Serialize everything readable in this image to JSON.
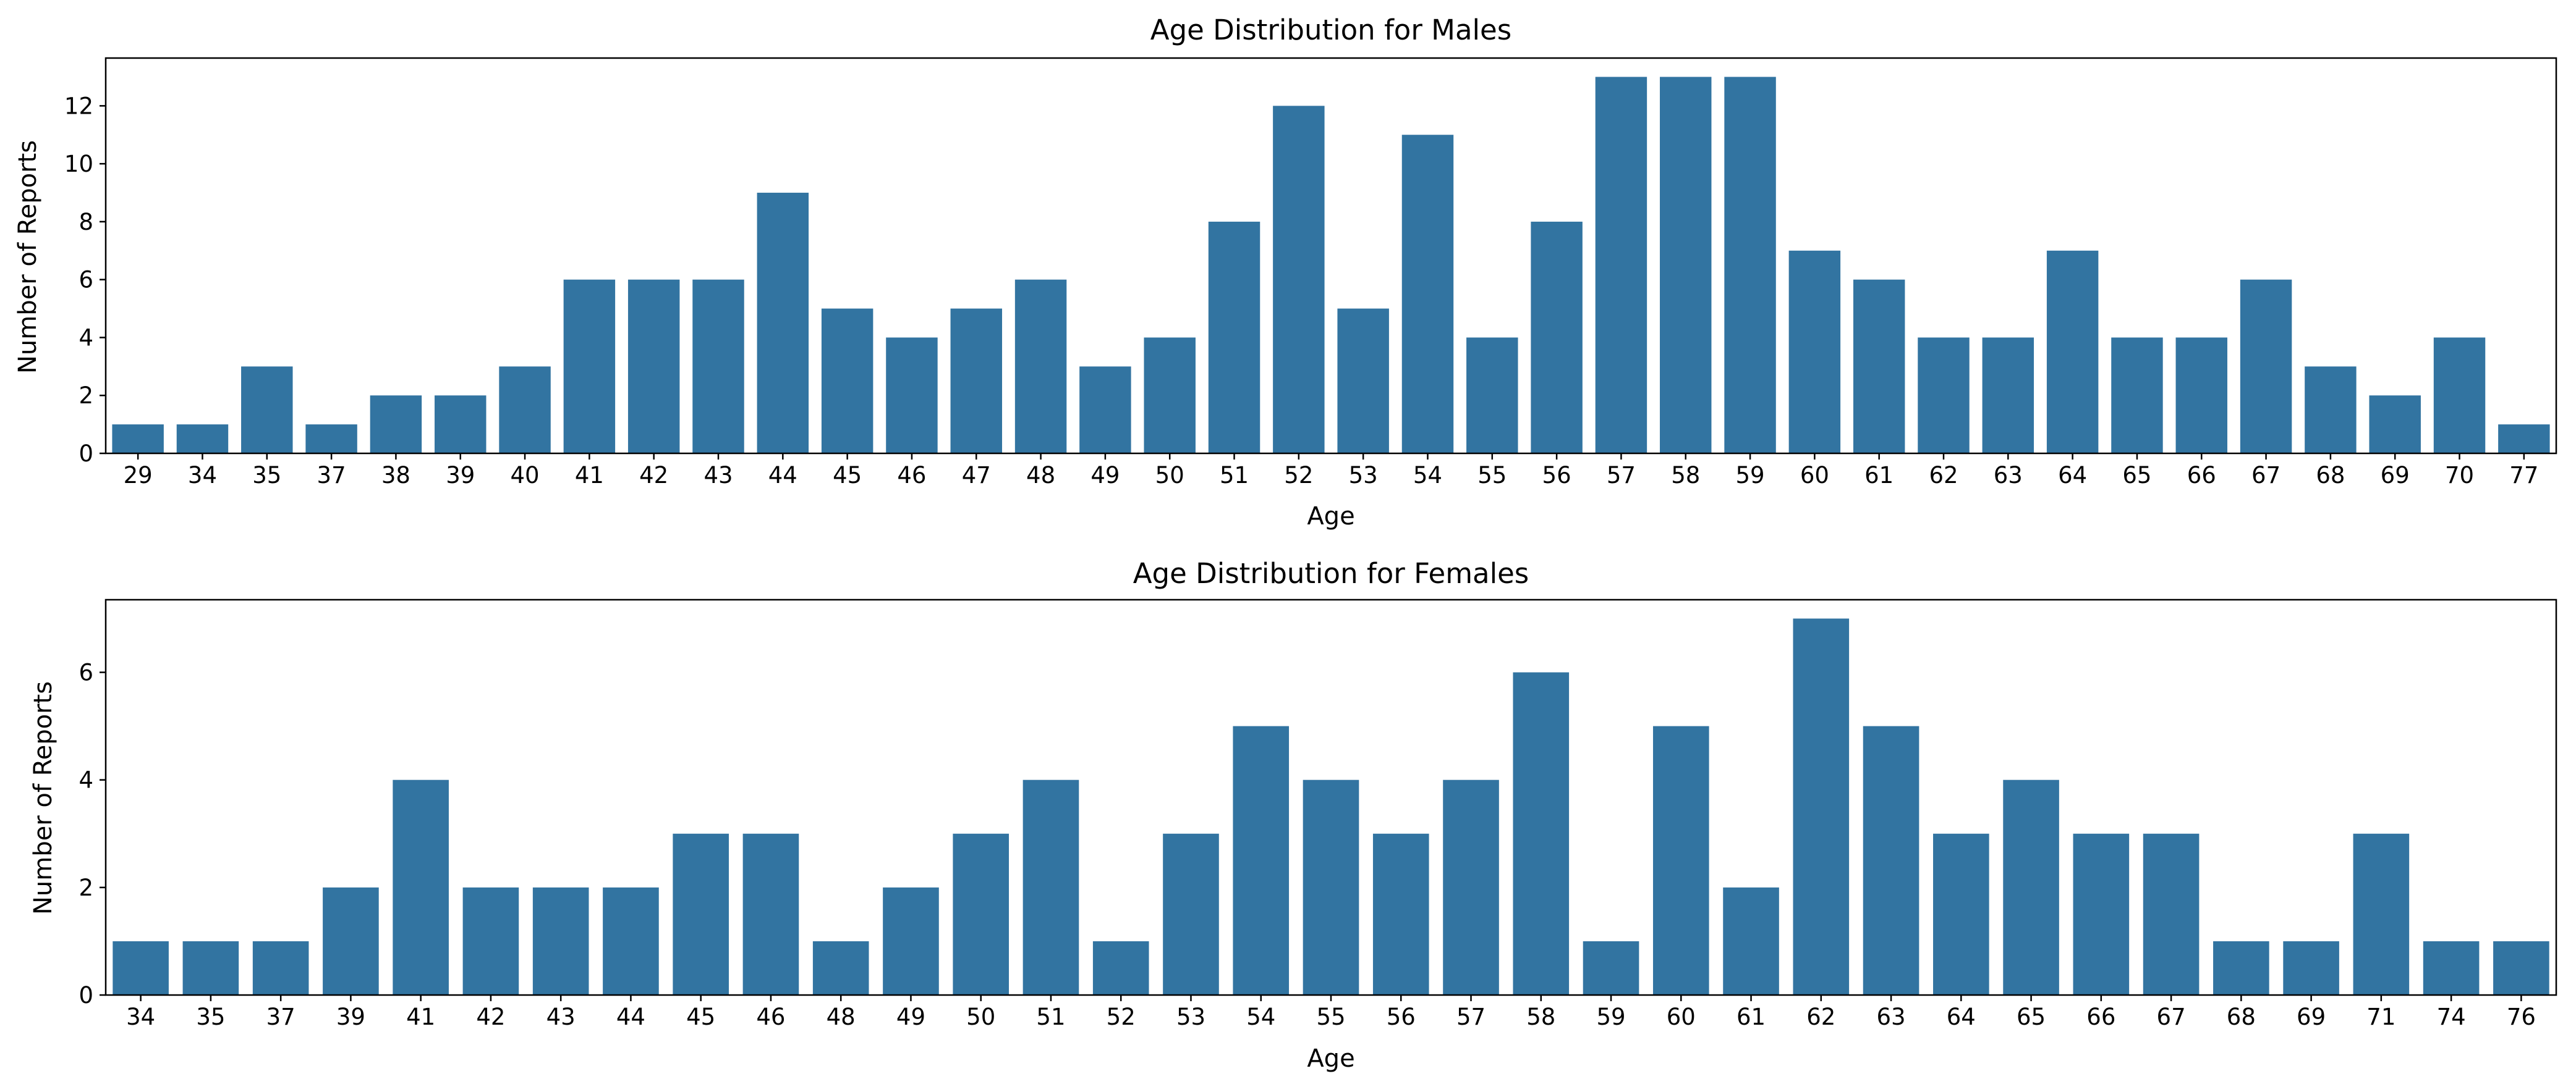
{
  "chart_data": [
    {
      "type": "bar",
      "title": "Age Distribution for Males",
      "xlabel": "Age",
      "ylabel": "Number of Reports",
      "categories": [
        "29",
        "34",
        "35",
        "37",
        "38",
        "39",
        "40",
        "41",
        "42",
        "43",
        "44",
        "45",
        "46",
        "47",
        "48",
        "49",
        "50",
        "51",
        "52",
        "53",
        "54",
        "55",
        "56",
        "57",
        "58",
        "59",
        "60",
        "61",
        "62",
        "63",
        "64",
        "65",
        "66",
        "67",
        "68",
        "69",
        "70",
        "77"
      ],
      "values": [
        1,
        1,
        3,
        1,
        2,
        2,
        3,
        6,
        6,
        6,
        9,
        5,
        4,
        5,
        6,
        3,
        4,
        8,
        12,
        5,
        11,
        4,
        8,
        13,
        13,
        13,
        7,
        6,
        4,
        4,
        7,
        4,
        4,
        6,
        3,
        2,
        4,
        1
      ],
      "ylim": [
        0,
        13.65
      ],
      "yticks": [
        0,
        2,
        4,
        6,
        8,
        10,
        12
      ],
      "grid": false,
      "color": "#3274a1"
    },
    {
      "type": "bar",
      "title": "Age Distribution for Females",
      "xlabel": "Age",
      "ylabel": "Number of Reports",
      "categories": [
        "34",
        "35",
        "37",
        "39",
        "41",
        "42",
        "43",
        "44",
        "45",
        "46",
        "48",
        "49",
        "50",
        "51",
        "52",
        "53",
        "54",
        "55",
        "56",
        "57",
        "58",
        "59",
        "60",
        "61",
        "62",
        "63",
        "64",
        "65",
        "66",
        "67",
        "68",
        "69",
        "71",
        "74",
        "76"
      ],
      "values": [
        1,
        1,
        1,
        2,
        4,
        2,
        2,
        2,
        3,
        3,
        1,
        2,
        3,
        4,
        1,
        3,
        5,
        4,
        3,
        4,
        6,
        1,
        5,
        2,
        7,
        5,
        3,
        4,
        3,
        3,
        1,
        1,
        3,
        1,
        1
      ],
      "ylim": [
        0,
        7.35
      ],
      "yticks": [
        0,
        2,
        4,
        6
      ],
      "grid": false,
      "color": "#3274a1"
    }
  ]
}
